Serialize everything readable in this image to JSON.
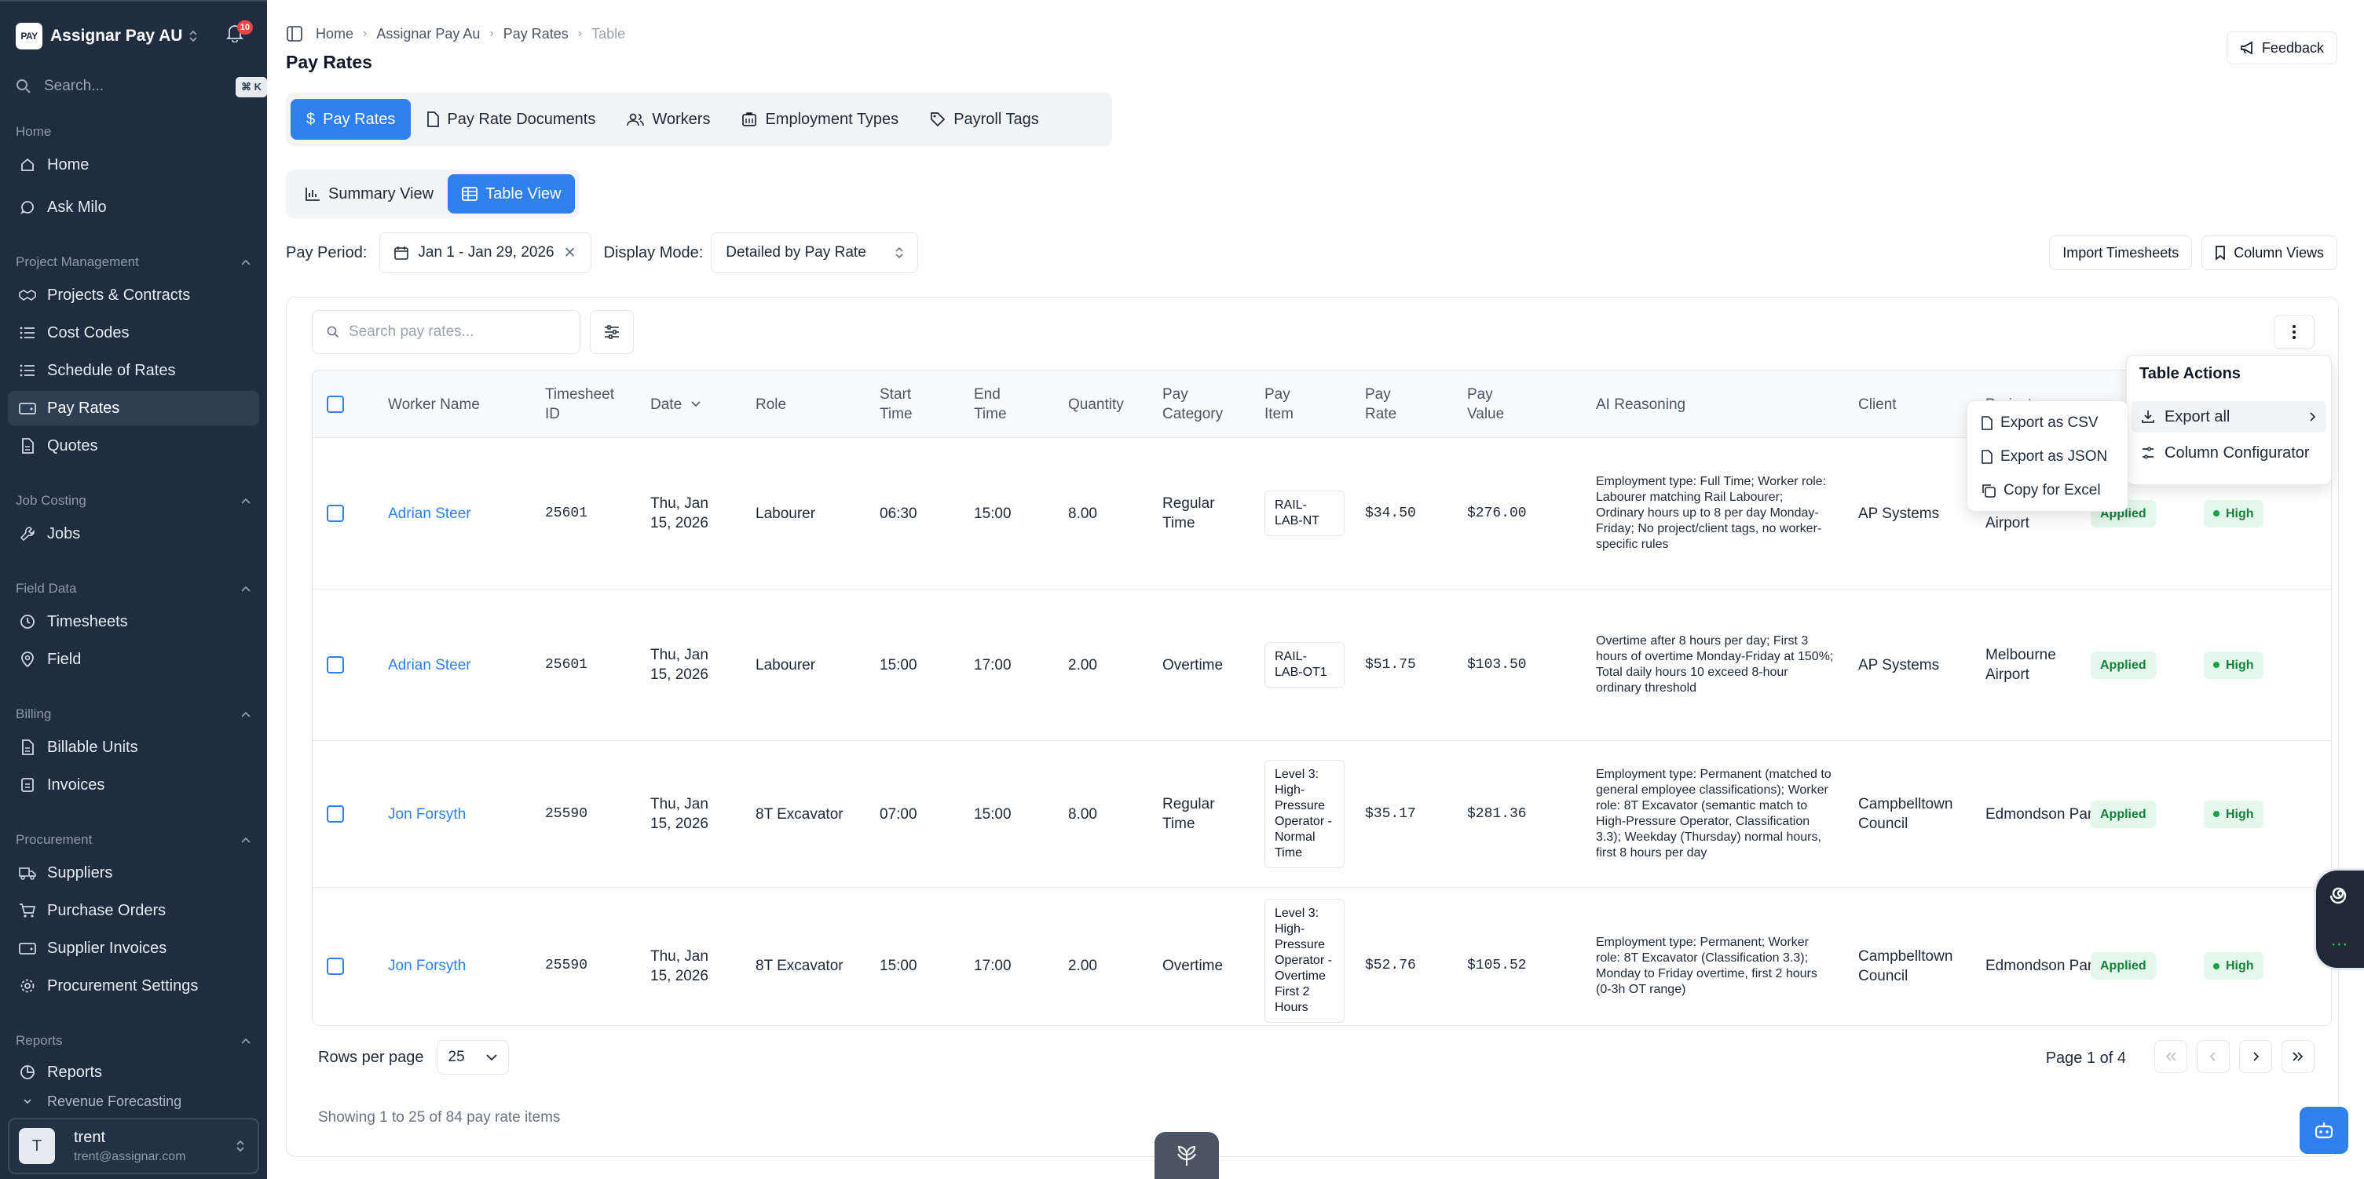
{
  "sidebar": {
    "logo": "PAY",
    "app_name": "Assignar Pay AU",
    "notifications": "10",
    "search_placeholder": "Search...",
    "search_shortcut": "⌘ K",
    "home_section": "Home",
    "home_items": [
      {
        "label": "Home",
        "icon": "home-icon"
      },
      {
        "label": "Ask Milo",
        "icon": "chat-icon"
      }
    ],
    "pm_section": "Project Management",
    "pm_items": [
      {
        "label": "Projects & Contracts",
        "icon": "handshake-icon"
      },
      {
        "label": "Cost Codes",
        "icon": "list-icon"
      },
      {
        "label": "Schedule of Rates",
        "icon": "list-icon"
      },
      {
        "label": "Pay Rates",
        "icon": "wallet-icon"
      },
      {
        "label": "Quotes",
        "icon": "document-icon"
      }
    ],
    "jc_section": "Job Costing",
    "jc_items": [
      {
        "label": "Jobs",
        "icon": "wrench-icon"
      }
    ],
    "fd_section": "Field Data",
    "fd_items": [
      {
        "label": "Timesheets",
        "icon": "clock-icon"
      },
      {
        "label": "Field",
        "icon": "location-icon"
      }
    ],
    "billing_section": "Billing",
    "billing_items": [
      {
        "label": "Billable Units",
        "icon": "document-icon"
      },
      {
        "label": "Invoices",
        "icon": "receipt-icon"
      }
    ],
    "proc_section": "Procurement",
    "proc_items": [
      {
        "label": "Suppliers",
        "icon": "truck-icon"
      },
      {
        "label": "Purchase Orders",
        "icon": "cart-icon"
      },
      {
        "label": "Supplier Invoices",
        "icon": "wallet-icon"
      },
      {
        "label": "Procurement Settings",
        "icon": "gear-icon"
      }
    ],
    "reports_section": "Reports",
    "reports_items": [
      {
        "label": "Reports",
        "icon": "chart-icon"
      },
      {
        "label": "Revenue Forecasting",
        "icon": "chevron-down-icon"
      }
    ],
    "user": {
      "initial": "T",
      "name": "trent",
      "email": "trent@assignar.com"
    }
  },
  "breadcrumb": [
    "Home",
    "Assignar Pay Au",
    "Pay Rates",
    "Table"
  ],
  "page_title": "Pay Rates",
  "feedback_label": "Feedback",
  "tabs": [
    "Pay Rates",
    "Pay Rate Documents",
    "Workers",
    "Employment Types",
    "Payroll Tags"
  ],
  "views": [
    "Summary View",
    "Table View"
  ],
  "filters": {
    "pay_period_label": "Pay Period:",
    "pay_period_value": "Jan 1 - Jan 29, 2026",
    "display_mode_label": "Display Mode:",
    "display_mode_value": "Detailed by Pay Rate"
  },
  "import_timesheets": "Import Timesheets",
  "column_views": "Column Views",
  "table_search_placeholder": "Search pay rates...",
  "columns": [
    "Worker Name",
    "Timesheet ID",
    "Date",
    "Role",
    "Start Time",
    "End Time",
    "Quantity",
    "Pay Category",
    "Pay Item",
    "Pay Rate",
    "Pay Value",
    "AI Reasoning",
    "Client",
    "Project"
  ],
  "rows": [
    {
      "worker": "Adrian Steer",
      "timesheet": "25601",
      "date": "Thu, Jan 15, 2026",
      "role": "Labourer",
      "start": "06:30",
      "end": "15:00",
      "qty": "8.00",
      "category": "Regular Time",
      "pay_item": "RAIL-LAB-NT",
      "rate": "$34.50",
      "value": "$276.00",
      "reason": "Employment type: Full Time; Worker role: Labourer matching Rail Labourer; Ordinary hours up to 8 per day Monday-Friday; No project/client tags, no worker-specific rules",
      "client": "AP Systems",
      "project": "Airport",
      "status": "Applied",
      "confidence": "High"
    },
    {
      "worker": "Adrian Steer",
      "timesheet": "25601",
      "date": "Thu, Jan 15, 2026",
      "role": "Labourer",
      "start": "15:00",
      "end": "17:00",
      "qty": "2.00",
      "category": "Overtime",
      "pay_item": "RAIL-LAB-OT1",
      "rate": "$51.75",
      "value": "$103.50",
      "reason": "Overtime after 8 hours per day; First 3 hours of overtime Monday-Friday at 150%; Total daily hours 10 exceed 8-hour ordinary threshold",
      "client": "AP Systems",
      "project": "Melbourne Airport",
      "status": "Applied",
      "confidence": "High"
    },
    {
      "worker": "Jon Forsyth",
      "timesheet": "25590",
      "date": "Thu, Jan 15, 2026",
      "role": "8T Excavator",
      "start": "07:00",
      "end": "15:00",
      "qty": "8.00",
      "category": "Regular Time",
      "pay_item": "Level 3: High-Pressure Operator - Normal Time",
      "rate": "$35.17",
      "value": "$281.36",
      "reason": "Employment type: Permanent (matched to general employee classifications); Worker role: 8T Excavator (semantic match to High-Pressure Operator, Classification 3.3); Weekday (Thursday) normal hours, first 8 hours per day",
      "client": "Campbelltown Council",
      "project": "Edmondson Park",
      "status": "Applied",
      "confidence": "High"
    },
    {
      "worker": "Jon Forsyth",
      "timesheet": "25590",
      "date": "Thu, Jan 15, 2026",
      "role": "8T Excavator",
      "start": "15:00",
      "end": "17:00",
      "qty": "2.00",
      "category": "Overtime",
      "pay_item": "Level 3: High-Pressure Operator - Overtime First 2 Hours",
      "rate": "$52.76",
      "value": "$105.52",
      "reason": "Employment type: Permanent; Worker role: 8T Excavator (Classification 3.3); Monday to Friday overtime, first 2 hours (0-3h OT range)",
      "client": "Campbelltown Council",
      "project": "Edmondson Park",
      "status": "Applied",
      "confidence": "High"
    }
  ],
  "rows_per_page_label": "Rows per page",
  "rows_per_page_value": "25",
  "page_info": "Page 1 of 4",
  "showing": "Showing 1 to 25 of 84 pay rate items",
  "table_actions": {
    "title": "Table Actions",
    "items": [
      "Export all",
      "Column Configurator"
    ]
  },
  "export_menu": [
    "Export as CSV",
    "Export as JSON",
    "Copy for Excel"
  ],
  "colors": {
    "accent": "#2f80ed",
    "sidebar": "#1f2d3f",
    "success": "#15803d"
  }
}
